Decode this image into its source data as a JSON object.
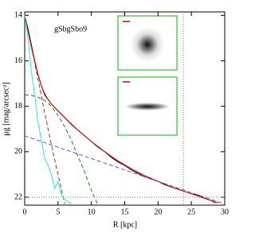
{
  "chart_data": {
    "type": "line",
    "annotation": "gSbgSbo9",
    "x_label": "R   [kpc]",
    "y_label": "μg  [mag/arcsec²]",
    "xlim": [
      0,
      30
    ],
    "xticks": [
      0,
      5,
      10,
      15,
      20,
      25,
      30
    ],
    "ylim": [
      22.35,
      13.85
    ],
    "yticks": [
      14,
      16,
      18,
      20,
      22
    ],
    "reference_x": 23.8,
    "reference_y": 22,
    "series": [
      {
        "color": "#000000",
        "style": "solid",
        "x": [
          0,
          0.5,
          1,
          1.5,
          2,
          2.5,
          3,
          3.5,
          4,
          5,
          6,
          7,
          8,
          9,
          10,
          11,
          12,
          13,
          14,
          15,
          16,
          17,
          18,
          19,
          20,
          21,
          22,
          23,
          24,
          25,
          26,
          27,
          28,
          28.6
        ],
        "values": [
          14.0,
          14.6,
          15.3,
          16.0,
          16.6,
          17.1,
          17.5,
          17.7,
          17.9,
          18.2,
          18.5,
          18.8,
          19.05,
          19.3,
          19.55,
          19.8,
          20.0,
          20.25,
          20.45,
          20.6,
          20.8,
          20.95,
          21.1,
          21.2,
          21.3,
          21.45,
          21.55,
          21.65,
          21.75,
          21.85,
          21.9,
          22.05,
          22.15,
          22.25
        ]
      },
      {
        "color": "#e00000",
        "style": "solid",
        "x": [
          0,
          0.5,
          1,
          1.5,
          2,
          2.5,
          3,
          3.5,
          4,
          5,
          6,
          8,
          10,
          12,
          14,
          16,
          18,
          20,
          22,
          24,
          26,
          28,
          29
        ],
        "values": [
          14.0,
          14.7,
          15.4,
          16.0,
          16.6,
          17.1,
          17.45,
          17.7,
          17.9,
          18.2,
          18.5,
          19.05,
          19.55,
          20.0,
          20.4,
          20.75,
          21.05,
          21.3,
          21.55,
          21.75,
          21.95,
          22.15,
          22.25
        ]
      },
      {
        "color": "#208020",
        "style": "dashed",
        "x": [
          0,
          1,
          2,
          3,
          4,
          5,
          6,
          7,
          8,
          9,
          10,
          11
        ],
        "values": [
          17.5,
          17.52,
          17.6,
          17.75,
          18.0,
          18.4,
          18.9,
          19.5,
          20.2,
          20.9,
          21.7,
          22.35
        ]
      },
      {
        "color": "#a03020",
        "style": "dashed",
        "x": [
          0,
          1,
          2,
          3,
          4,
          5,
          6
        ],
        "values": [
          14.0,
          15.4,
          16.8,
          18.3,
          19.7,
          21.0,
          22.3
        ]
      },
      {
        "color": "#7050e0",
        "style": "dashed",
        "x": [
          0,
          30
        ],
        "values": [
          19.3,
          22.3
        ]
      },
      {
        "color": "#30e0f0",
        "style": "solid",
        "x": [
          0,
          0.5,
          1,
          1.5,
          2,
          2.5,
          3,
          3.5,
          4,
          4.5,
          5,
          5.5,
          6,
          7
        ],
        "values": [
          14.0,
          15.0,
          16.5,
          17.5,
          18.7,
          19.5,
          20.3,
          20.6,
          21.0,
          21.6,
          21.3,
          21.9,
          22.1,
          22.3
        ]
      }
    ]
  }
}
